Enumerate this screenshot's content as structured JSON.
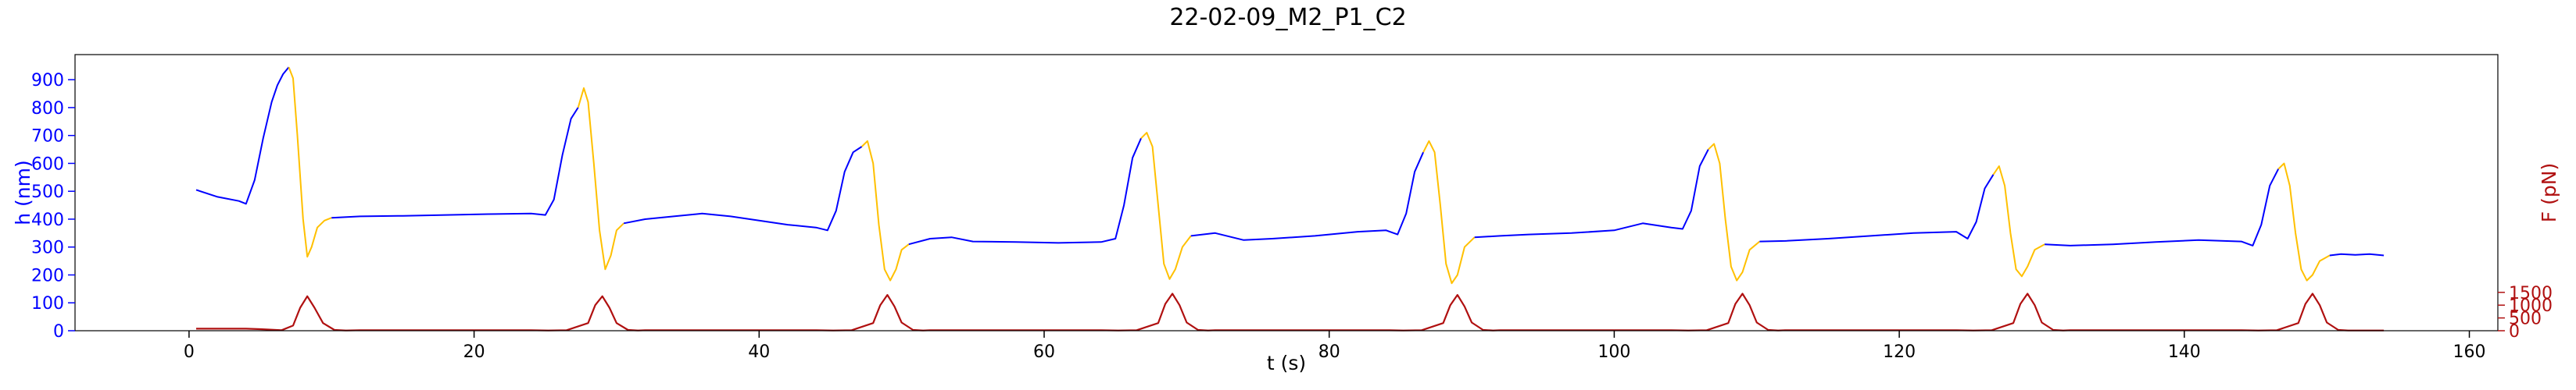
{
  "chart_data": {
    "type": "line",
    "title": "22-02-09_M2_P1_C2",
    "xlabel": "t (s)",
    "ylabel_left": "h (nm)",
    "ylabel_right": "F (pN)",
    "xlim": [
      -8,
      162
    ],
    "ylim_left": [
      0,
      990
    ],
    "ylim_right": [
      0,
      10800
    ],
    "x_ticks": [
      0,
      20,
      40,
      60,
      80,
      100,
      120,
      140,
      160
    ],
    "y_ticks_left": [
      0,
      100,
      200,
      300,
      400,
      500,
      600,
      700,
      800,
      900
    ],
    "y_ticks_right": [
      0,
      500,
      1000,
      1500
    ],
    "grid": false,
    "colors": {
      "h_rest": "#0000ff",
      "h_pulse": "#ffc000",
      "force": "#b01010",
      "left_axis": "#0000ff",
      "right_axis": "#b01010",
      "text": "#000000"
    },
    "series": [
      {
        "axis": "left",
        "color": "#0000ff",
        "x": [
          0.5,
          2,
          3.5,
          4,
          4.6,
          5.2,
          5.8,
          6.2,
          6.6,
          7.0
        ],
        "y": [
          505,
          480,
          465,
          455,
          540,
          690,
          820,
          880,
          920,
          945
        ]
      },
      {
        "axis": "left",
        "color": "#ffc000",
        "x": [
          7.0,
          7.3,
          7.6,
          8.0,
          8.3,
          8.6,
          9.0,
          9.5,
          10.0
        ],
        "y": [
          945,
          905,
          700,
          400,
          265,
          300,
          370,
          395,
          405
        ]
      },
      {
        "axis": "left",
        "color": "#0000ff",
        "x": [
          10.0,
          12,
          15,
          18,
          21,
          24,
          25,
          25.6,
          26.2,
          26.8,
          27.3
        ],
        "y": [
          405,
          410,
          412,
          415,
          418,
          420,
          415,
          470,
          630,
          760,
          800
        ]
      },
      {
        "axis": "left",
        "color": "#ffc000",
        "x": [
          27.3,
          27.7,
          28.0,
          28.4,
          28.8,
          29.2,
          29.6,
          30.0,
          30.5
        ],
        "y": [
          800,
          870,
          820,
          600,
          360,
          220,
          270,
          360,
          385
        ]
      },
      {
        "axis": "left",
        "color": "#0000ff",
        "x": [
          30.5,
          32,
          34,
          36,
          38,
          40,
          42,
          44,
          44.8,
          45.4,
          46,
          46.6,
          47.2
        ],
        "y": [
          385,
          400,
          410,
          420,
          410,
          395,
          380,
          370,
          360,
          430,
          570,
          640,
          660
        ]
      },
      {
        "axis": "left",
        "color": "#ffc000",
        "x": [
          47.2,
          47.6,
          48.0,
          48.4,
          48.8,
          49.2,
          49.6,
          50.0,
          50.5
        ],
        "y": [
          660,
          680,
          600,
          380,
          220,
          180,
          220,
          290,
          310
        ]
      },
      {
        "axis": "left",
        "color": "#0000ff",
        "x": [
          50.5,
          52,
          53.5,
          55,
          58,
          61,
          64,
          65,
          65.6,
          66.2,
          66.8
        ],
        "y": [
          310,
          330,
          335,
          320,
          318,
          315,
          318,
          330,
          450,
          620,
          690
        ]
      },
      {
        "axis": "left",
        "color": "#ffc000",
        "x": [
          66.8,
          67.2,
          67.6,
          68.0,
          68.4,
          68.8,
          69.2,
          69.7,
          70.3
        ],
        "y": [
          690,
          710,
          660,
          450,
          240,
          185,
          220,
          300,
          340
        ]
      },
      {
        "axis": "left",
        "color": "#0000ff",
        "x": [
          70.3,
          72,
          74,
          76,
          79,
          82,
          84,
          84.8,
          85.4,
          86,
          86.6
        ],
        "y": [
          340,
          350,
          325,
          330,
          340,
          355,
          360,
          345,
          420,
          570,
          640
        ]
      },
      {
        "axis": "left",
        "color": "#ffc000",
        "x": [
          86.6,
          87.0,
          87.4,
          87.8,
          88.2,
          88.6,
          89.0,
          89.5,
          90.2
        ],
        "y": [
          640,
          680,
          640,
          450,
          240,
          170,
          200,
          300,
          335
        ]
      },
      {
        "axis": "left",
        "color": "#0000ff",
        "x": [
          90.2,
          92,
          94,
          97,
          100,
          102,
          104,
          104.8,
          105.4,
          106,
          106.6
        ],
        "y": [
          335,
          340,
          345,
          350,
          360,
          385,
          370,
          365,
          430,
          590,
          650
        ]
      },
      {
        "axis": "left",
        "color": "#ffc000",
        "x": [
          106.6,
          107.0,
          107.4,
          107.8,
          108.2,
          108.6,
          109.0,
          109.5,
          110.2
        ],
        "y": [
          650,
          670,
          600,
          400,
          230,
          180,
          210,
          290,
          320
        ]
      },
      {
        "axis": "left",
        "color": "#0000ff",
        "x": [
          110.2,
          112,
          115,
          118,
          121,
          124,
          124.8,
          125.4,
          126,
          126.6
        ],
        "y": [
          320,
          322,
          330,
          340,
          350,
          355,
          330,
          390,
          510,
          560
        ]
      },
      {
        "axis": "left",
        "color": "#ffc000",
        "x": [
          126.6,
          127.0,
          127.4,
          127.8,
          128.2,
          128.6,
          129.0,
          129.5,
          130.2
        ],
        "y": [
          560,
          590,
          520,
          350,
          220,
          195,
          230,
          290,
          310
        ]
      },
      {
        "axis": "left",
        "color": "#0000ff",
        "x": [
          130.2,
          132,
          135,
          138,
          141,
          144,
          144.8,
          145.4,
          146,
          146.6
        ],
        "y": [
          310,
          305,
          310,
          318,
          325,
          320,
          305,
          380,
          520,
          580
        ]
      },
      {
        "axis": "left",
        "color": "#ffc000",
        "x": [
          146.6,
          147.0,
          147.4,
          147.8,
          148.2,
          148.6,
          149.0,
          149.5,
          150.2
        ],
        "y": [
          580,
          600,
          520,
          350,
          220,
          180,
          200,
          250,
          270
        ]
      },
      {
        "axis": "left",
        "color": "#0000ff",
        "x": [
          150.2,
          151,
          152,
          153,
          154
        ],
        "y": [
          270,
          275,
          272,
          275,
          270
        ]
      },
      {
        "axis": "right",
        "color": "#b01010",
        "x": [
          0.5,
          4,
          5,
          6.5,
          7.3,
          7.8,
          8.3,
          8.8,
          9.4,
          10.2,
          11,
          12,
          24,
          25.2,
          26.5,
          28,
          28.5,
          29,
          29.5,
          30,
          30.8,
          31.5,
          32,
          44,
          45.2,
          46.5,
          48,
          48.5,
          49,
          49.5,
          50,
          50.8,
          51.5,
          52,
          64,
          65.2,
          66.5,
          68,
          68.5,
          69,
          69.5,
          70,
          70.8,
          71.5,
          72,
          84,
          85.2,
          86.5,
          88,
          88.5,
          89,
          89.5,
          90,
          90.8,
          91.5,
          92,
          104,
          105.2,
          106.5,
          108,
          108.5,
          109,
          109.5,
          110,
          110.8,
          111.5,
          112,
          124,
          125.2,
          126.5,
          128,
          128.5,
          129,
          129.5,
          130,
          130.8,
          131.5,
          132,
          144,
          145.2,
          146.5,
          148,
          148.5,
          149,
          149.5,
          150,
          150.8,
          151.5,
          154
        ],
        "y": [
          80,
          80,
          60,
          20,
          200,
          900,
          1350,
          900,
          300,
          30,
          10,
          20,
          20,
          10,
          20,
          300,
          1000,
          1350,
          900,
          300,
          30,
          10,
          20,
          20,
          10,
          20,
          300,
          1000,
          1400,
          950,
          320,
          30,
          10,
          20,
          20,
          10,
          20,
          300,
          1050,
          1450,
          1000,
          320,
          30,
          10,
          20,
          20,
          10,
          20,
          300,
          1000,
          1400,
          950,
          320,
          30,
          10,
          20,
          20,
          10,
          20,
          300,
          1050,
          1450,
          1000,
          320,
          30,
          10,
          20,
          20,
          10,
          20,
          300,
          1050,
          1450,
          1000,
          320,
          30,
          10,
          20,
          20,
          10,
          20,
          300,
          1050,
          1450,
          1000,
          320,
          30,
          10,
          10
        ]
      }
    ]
  }
}
